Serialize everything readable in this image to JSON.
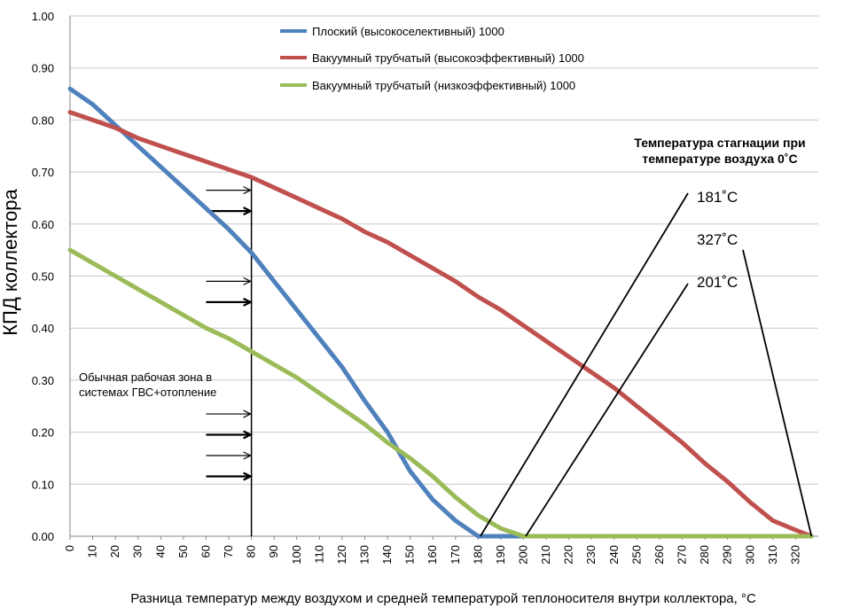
{
  "chart_data": {
    "type": "line",
    "title": "",
    "xlabel": "Разница температур между воздухом и средней температурой теплоносителя внутри коллектора, °C",
    "ylabel": "КПД коллектора",
    "xlim": [
      0,
      330
    ],
    "ylim": [
      0,
      1.0
    ],
    "x_ticks": [
      0,
      10,
      20,
      30,
      40,
      50,
      60,
      70,
      80,
      90,
      100,
      110,
      120,
      130,
      140,
      150,
      160,
      170,
      180,
      190,
      200,
      210,
      220,
      230,
      240,
      250,
      260,
      270,
      280,
      290,
      300,
      310,
      320
    ],
    "y_ticks": [
      "0.00",
      "0.10",
      "0.20",
      "0.30",
      "0.40",
      "0.50",
      "0.60",
      "0.70",
      "0.80",
      "0.90",
      "1.00"
    ],
    "grid": "horizontal",
    "legend_position": "top-center",
    "series": [
      {
        "name": "Плоский (высокоселективный)  1000",
        "color": "#4f81bd",
        "x": [
          0,
          10,
          20,
          30,
          40,
          50,
          60,
          70,
          80,
          90,
          100,
          110,
          120,
          130,
          140,
          150,
          160,
          170,
          180,
          190,
          200,
          210,
          220,
          230,
          240,
          250,
          260,
          270,
          280,
          290,
          300,
          310,
          320,
          327
        ],
        "y": [
          0.86,
          0.83,
          0.79,
          0.75,
          0.71,
          0.67,
          0.63,
          0.59,
          0.545,
          0.49,
          0.435,
          0.38,
          0.325,
          0.26,
          0.2,
          0.125,
          0.07,
          0.03,
          0.0,
          0.0,
          0.0,
          0.0,
          0.0,
          0.0,
          0.0,
          0.0,
          0.0,
          0.0,
          0.0,
          0.0,
          0.0,
          0.0,
          0.0,
          0.0
        ]
      },
      {
        "name": "Вакуумный трубчатый (высокоэффективный)  1000",
        "color": "#c0504d",
        "x": [
          0,
          10,
          20,
          30,
          40,
          50,
          60,
          70,
          80,
          90,
          100,
          110,
          120,
          130,
          140,
          150,
          160,
          170,
          180,
          190,
          200,
          210,
          220,
          230,
          240,
          250,
          260,
          270,
          280,
          290,
          300,
          310,
          320,
          327
        ],
        "y": [
          0.815,
          0.8,
          0.785,
          0.765,
          0.75,
          0.735,
          0.72,
          0.705,
          0.69,
          0.67,
          0.65,
          0.63,
          0.61,
          0.585,
          0.565,
          0.54,
          0.515,
          0.49,
          0.46,
          0.435,
          0.405,
          0.375,
          0.345,
          0.315,
          0.285,
          0.25,
          0.215,
          0.18,
          0.14,
          0.105,
          0.065,
          0.03,
          0.012,
          0.0
        ]
      },
      {
        "name": "Вакуумный трубчатый (низкоэффективный)  1000",
        "color": "#9bbb59",
        "x": [
          0,
          10,
          20,
          30,
          40,
          50,
          60,
          70,
          80,
          90,
          100,
          110,
          120,
          130,
          140,
          150,
          160,
          170,
          180,
          190,
          200,
          210,
          220,
          230,
          240,
          250,
          260,
          270,
          280,
          290,
          300,
          310,
          320,
          327
        ],
        "y": [
          0.55,
          0.525,
          0.5,
          0.475,
          0.45,
          0.425,
          0.4,
          0.38,
          0.355,
          0.33,
          0.305,
          0.275,
          0.245,
          0.215,
          0.18,
          0.15,
          0.115,
          0.075,
          0.04,
          0.015,
          0.0,
          0.0,
          0.0,
          0.0,
          0.0,
          0.0,
          0.0,
          0.0,
          0.0,
          0.0,
          0.0,
          0.0,
          0.0,
          0.0
        ]
      }
    ],
    "annotations": {
      "stagnation_title_line1": "Температура стагнации при",
      "stagnation_title_line2": "температуре воздуха 0˚C",
      "label_181": "181˚C",
      "label_327": "327˚C",
      "label_201": "201˚C",
      "work_zone_line1": "Обычная рабочая зона в",
      "work_zone_line2": "системах ГВС+отопление",
      "work_zone_x": 80,
      "work_zone_arrow_y": [
        0.665,
        0.625,
        0.49,
        0.45,
        0.235,
        0.195,
        0.155,
        0.115
      ],
      "stagnation_points": [
        {
          "x": 181,
          "label": "label_181",
          "label_at": [
            128,
            0.65
          ]
        },
        {
          "x": 201,
          "label": "label_201",
          "label_at": [
            128,
            0.485
          ]
        },
        {
          "x": 327,
          "label": "label_327",
          "label_at": [
            128,
            0.56
          ]
        }
      ]
    }
  }
}
